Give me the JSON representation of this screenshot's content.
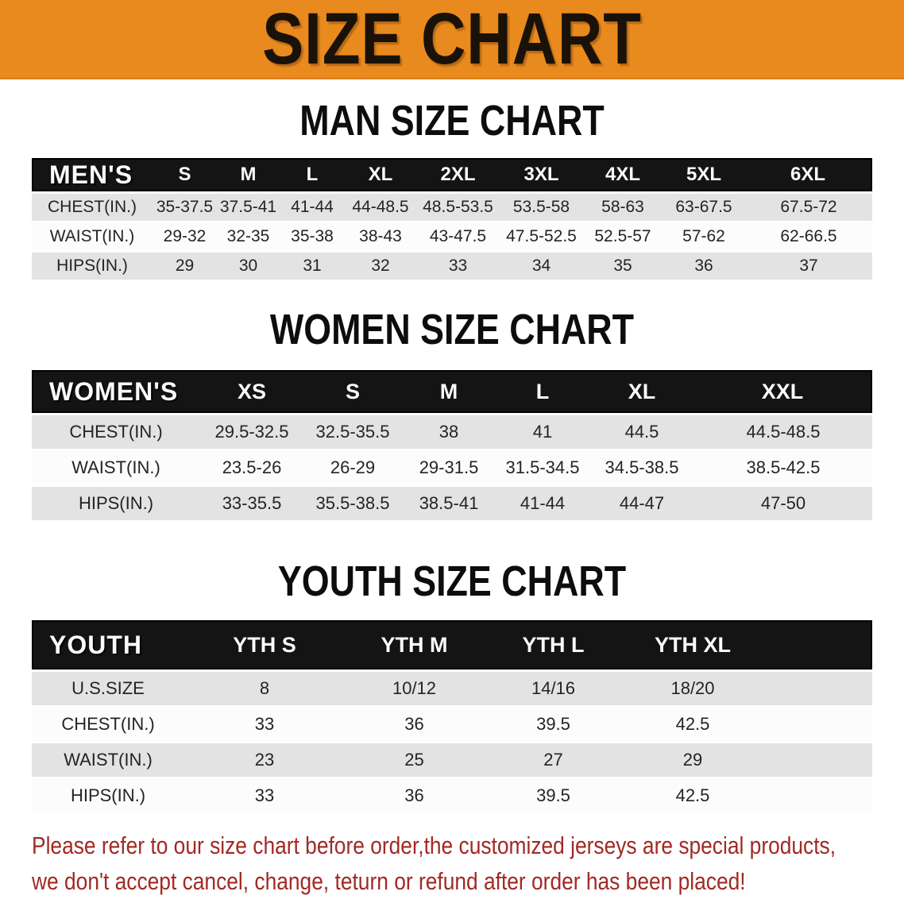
{
  "banner": {
    "title": "SIZE CHART"
  },
  "colors": {
    "banner_bg": "#e98a1f",
    "table_header_bg": "#141414",
    "row_gray": "#e3e3e3",
    "row_white": "#fcfcfc",
    "footer_red": "#a12a24"
  },
  "sections": [
    {
      "id": "men",
      "heading": "MAN SIZE CHART",
      "corner_label": "MEN'S",
      "columns": [
        "S",
        "M",
        "L",
        "XL",
        "2XL",
        "3XL",
        "4XL",
        "5XL",
        "6XL"
      ],
      "rows": [
        {
          "label": "CHEST(IN.)",
          "values": [
            "35-37.5",
            "37.5-41",
            "41-44",
            "44-48.5",
            "48.5-53.5",
            "53.5-58",
            "58-63",
            "63-67.5",
            "67.5-72"
          ]
        },
        {
          "label": "WAIST(IN.)",
          "values": [
            "29-32",
            "32-35",
            "35-38",
            "38-43",
            "43-47.5",
            "47.5-52.5",
            "52.5-57",
            "57-62",
            "62-66.5"
          ]
        },
        {
          "label": "HIPS(IN.)",
          "values": [
            "29",
            "30",
            "31",
            "32",
            "33",
            "34",
            "35",
            "36",
            "37"
          ]
        }
      ]
    },
    {
      "id": "women",
      "heading": "WOMEN SIZE CHART",
      "corner_label": "WOMEN'S",
      "columns": [
        "XS",
        "S",
        "M",
        "L",
        "XL",
        "XXL"
      ],
      "rows": [
        {
          "label": "CHEST(IN.)",
          "values": [
            "29.5-32.5",
            "32.5-35.5",
            "38",
            "41",
            "44.5",
            "44.5-48.5"
          ]
        },
        {
          "label": "WAIST(IN.)",
          "values": [
            "23.5-26",
            "26-29",
            "29-31.5",
            "31.5-34.5",
            "34.5-38.5",
            "38.5-42.5"
          ]
        },
        {
          "label": "HIPS(IN.)",
          "values": [
            "33-35.5",
            "35.5-38.5",
            "38.5-41",
            "41-44",
            "44-47",
            "47-50"
          ]
        }
      ]
    },
    {
      "id": "youth",
      "heading": "YOUTH SIZE CHART",
      "corner_label": "YOUTH",
      "columns": [
        "YTH S",
        "YTH M",
        "YTH L",
        "YTH XL"
      ],
      "rows": [
        {
          "label": "U.S.SIZE",
          "values": [
            "8",
            "10/12",
            "14/16",
            "18/20"
          ]
        },
        {
          "label": "CHEST(IN.)",
          "values": [
            "33",
            "36",
            "39.5",
            "42.5"
          ]
        },
        {
          "label": "WAIST(IN.)",
          "values": [
            "23",
            "25",
            "27",
            "29"
          ]
        },
        {
          "label": "HIPS(IN.)",
          "values": [
            "33",
            "36",
            "39.5",
            "42.5"
          ]
        }
      ]
    }
  ],
  "footer": {
    "line1": "Please refer to our size chart before order,the customized jerseys are special products,",
    "line2": "we don't accept cancel, change, teturn or refund after order has been placed!"
  }
}
